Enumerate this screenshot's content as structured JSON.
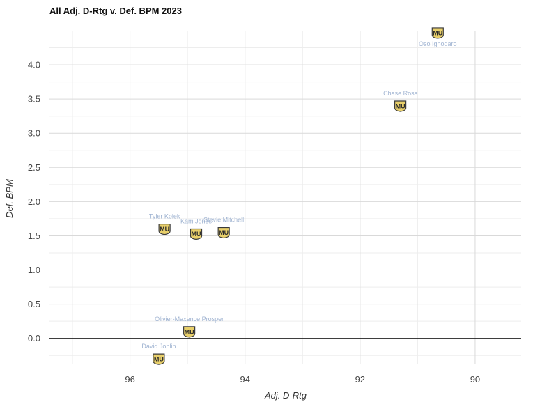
{
  "chart_data": {
    "type": "scatter",
    "title": "All Adj. D-Rtg v. Def. BPM 2023",
    "xlabel": "Adj. D-Rtg",
    "ylabel": "Def. BPM",
    "x_reversed": true,
    "xlim": [
      97.4,
      89.2
    ],
    "ylim": [
      -0.37,
      4.5
    ],
    "xticks": [
      96,
      94,
      92,
      90
    ],
    "yticks": [
      0.0,
      0.5,
      1.0,
      1.5,
      2.0,
      2.5,
      3.0,
      3.5,
      4.0
    ],
    "ytick_labels": [
      "0.0",
      "0.5",
      "1.0",
      "1.5",
      "2.0",
      "2.5",
      "3.0",
      "3.5",
      "4.0"
    ],
    "grid": true,
    "reference_line_y": 0,
    "marker_icon": "marquette-mu-logo-icon",
    "colors": {
      "label": "#9fb3d1",
      "grid": "#d9d9d9",
      "logo_fill": "#e8cf6a",
      "logo_stroke": "#3a3a3a"
    },
    "points": [
      {
        "name": "Oso Ighodaro",
        "x": 90.65,
        "y": 4.47
      },
      {
        "name": "Chase Ross",
        "x": 91.3,
        "y": 3.4
      },
      {
        "name": "Tyler Kolek",
        "x": 95.4,
        "y": 1.6
      },
      {
        "name": "Kam Jones",
        "x": 94.85,
        "y": 1.53
      },
      {
        "name": "Stevie Mitchell",
        "x": 94.37,
        "y": 1.55
      },
      {
        "name": "Olivier-Maxence Prosper",
        "x": 94.97,
        "y": 0.1
      },
      {
        "name": "David Joplin",
        "x": 95.5,
        "y": -0.3
      }
    ]
  }
}
